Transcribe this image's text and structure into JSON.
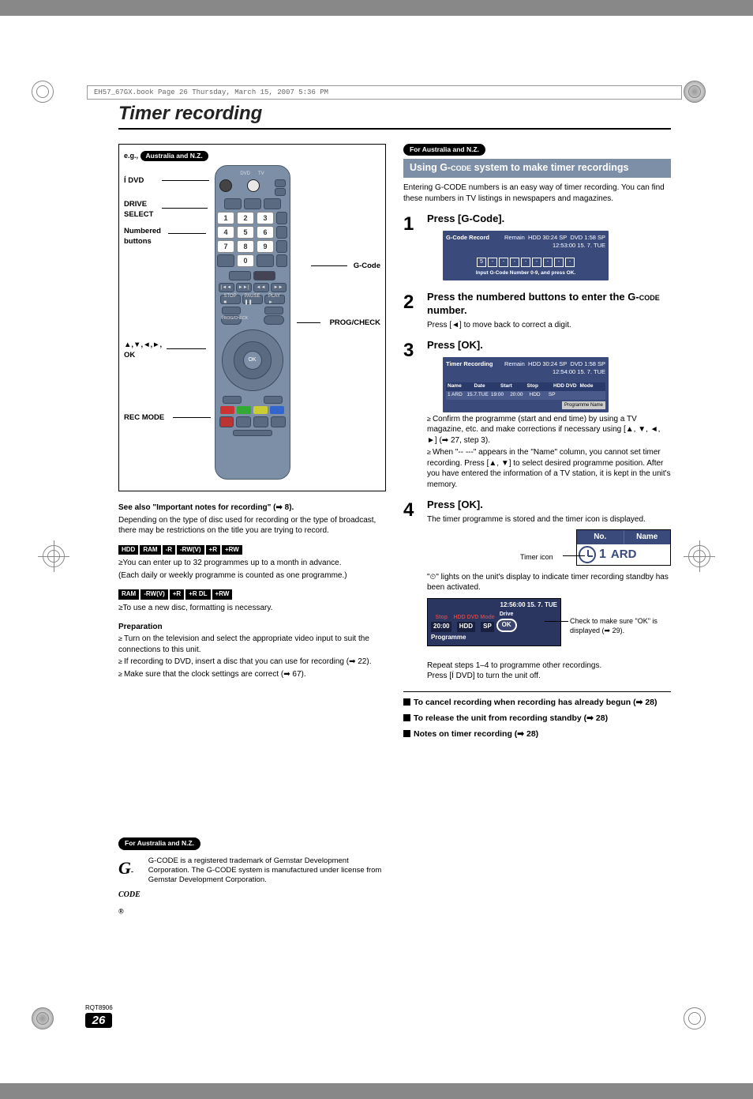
{
  "header_file_info": "EH57_67GX.book  Page 26  Thursday, March 15, 2007  5:36 PM",
  "title": "Timer recording",
  "remote": {
    "eg_label": "e.g.,",
    "region_badge": "Australia and N.Z.",
    "callouts": {
      "dvd": "Í DVD",
      "drive_select": "DRIVE SELECT",
      "numbered": "Numbered buttons",
      "arrows_ok": "▲,▼,◄,►, OK",
      "rec_mode": "REC MODE",
      "gcode": "G-Code",
      "prog_check": "PROG/CHECK"
    },
    "num_rows": [
      [
        "1",
        "2",
        "3"
      ],
      [
        "4",
        "5",
        "6"
      ],
      [
        "7",
        "8",
        "9"
      ],
      [
        "",
        "0",
        ""
      ]
    ]
  },
  "left": {
    "see_also": "See also \"Important notes for recording\" (➡ 8).",
    "depending": "Depending on the type of disc used for recording or the type of broadcast, there may be restrictions on the title you are trying to record.",
    "badges1": [
      "HDD",
      "RAM",
      "-R",
      "-RW(V)",
      "+R",
      "+RW"
    ],
    "line1a": "≥You can enter up to 32 programmes up to a month in advance.",
    "line1b": "(Each daily or weekly programme is counted as one programme.)",
    "badges2": [
      "RAM",
      "-RW(V)",
      "+R",
      "+R DL",
      "+RW"
    ],
    "line2": "≥To use a new disc, formatting is necessary.",
    "prep_head": "Preparation",
    "prep": [
      "Turn on the television and select the appropriate video input to suit the connections to this unit.",
      "If recording to DVD, insert a disc that you can use for recording (➡ 22).",
      "Make sure that the clock settings are correct (➡ 67)."
    ],
    "anz_badge": "For Australia and N.Z.",
    "gcode_logo": "G",
    "gcode_logo_sub": "-CODE",
    "gcode_r": "®",
    "gcode_text": "G-CODE is a registered trademark of Gemstar Development Corporation. The G-CODE system is manufactured under license from Gemstar Development Corporation."
  },
  "right": {
    "anz_badge": "For Australia and N.Z.",
    "section_title": "Using G-CODE system to make timer recordings",
    "intro": "Entering G-CODE numbers is an easy way of timer recording. You can find these numbers in TV listings in newspapers and magazines.",
    "steps": [
      {
        "n": "1",
        "title": "Press [G-Code]."
      },
      {
        "n": "2",
        "title": "Press the numbered buttons to enter the G-CODE number.",
        "text": "Press [◄] to move back to correct a digit."
      },
      {
        "n": "3",
        "title": "Press [OK]."
      },
      {
        "n": "4",
        "title": "Press [OK].",
        "text": "The timer programme is stored and the timer icon is displayed."
      }
    ],
    "osd1": {
      "title": "G-Code Record",
      "remain": "Remain",
      "hdd": "HDD  30:24 SP",
      "dvd": "DVD  1:58 SP",
      "clock": "12:53:00  15. 7.  TUE",
      "digits": [
        "5",
        "-",
        "-",
        "-",
        "-",
        "-",
        "-",
        "-",
        "-"
      ],
      "hint": "Input G-Code Number 0-9, and press OK."
    },
    "osd2": {
      "title": "Timer Recording",
      "remain": "Remain",
      "hdd": "HDD  30:24 SP",
      "dvd": "DVD  1:58 SP",
      "clock": "12:54:00  15. 7.  TUE",
      "headers": [
        "Name",
        "Date",
        "Start",
        "Stop",
        "HDD DVD",
        "Mode"
      ],
      "row": [
        "1 ARD",
        "15.7.TUE",
        "19:00",
        "20:00",
        "HDD",
        "SP",
        "",
        ""
      ],
      "prog_name": "Programme Name"
    },
    "after3": [
      "Confirm the programme (start and end time) by using a TV magazine, etc. and make corrections if necessary using [▲, ▼, ◄, ►] (➡ 27, step 3).",
      "When \"-- ---\" appears in the \"Name\" column, you cannot set timer recording. Press [▲, ▼] to select desired programme position. After you have entered the information of a TV station, it is kept in the unit's memory."
    ],
    "name_panel": {
      "no": "No.",
      "name": "Name",
      "row_num": "1",
      "row_name": "ARD",
      "timer_label": "Timer icon"
    },
    "timer_note": "\"⏲\" lights on the unit's display to indicate timer recording standby has been activated.",
    "status": {
      "clock": "12:56:00  15. 7. TUE",
      "labels": {
        "stop": "Stop",
        "hdd_dvd": "HDD DVD",
        "mode": "Mode",
        "drive": "Drive"
      },
      "vals": {
        "stop": "20:00",
        "drive": "HDD",
        "mode": "SP",
        "ok": "OK"
      },
      "foot": "Programme",
      "check": "Check to make sure \"OK\" is displayed (➡ 29)."
    },
    "repeat": "Repeat steps 1–4 to programme other recordings.",
    "press_off": "Press [Í DVD] to turn the unit off.",
    "endnotes": [
      "To cancel recording when recording has already begun (➡ 28)",
      "To release the unit from recording standby (➡ 28)",
      "Notes on timer recording (➡ 28)"
    ]
  },
  "footer": {
    "rqt": "RQT8906",
    "page": "26"
  }
}
